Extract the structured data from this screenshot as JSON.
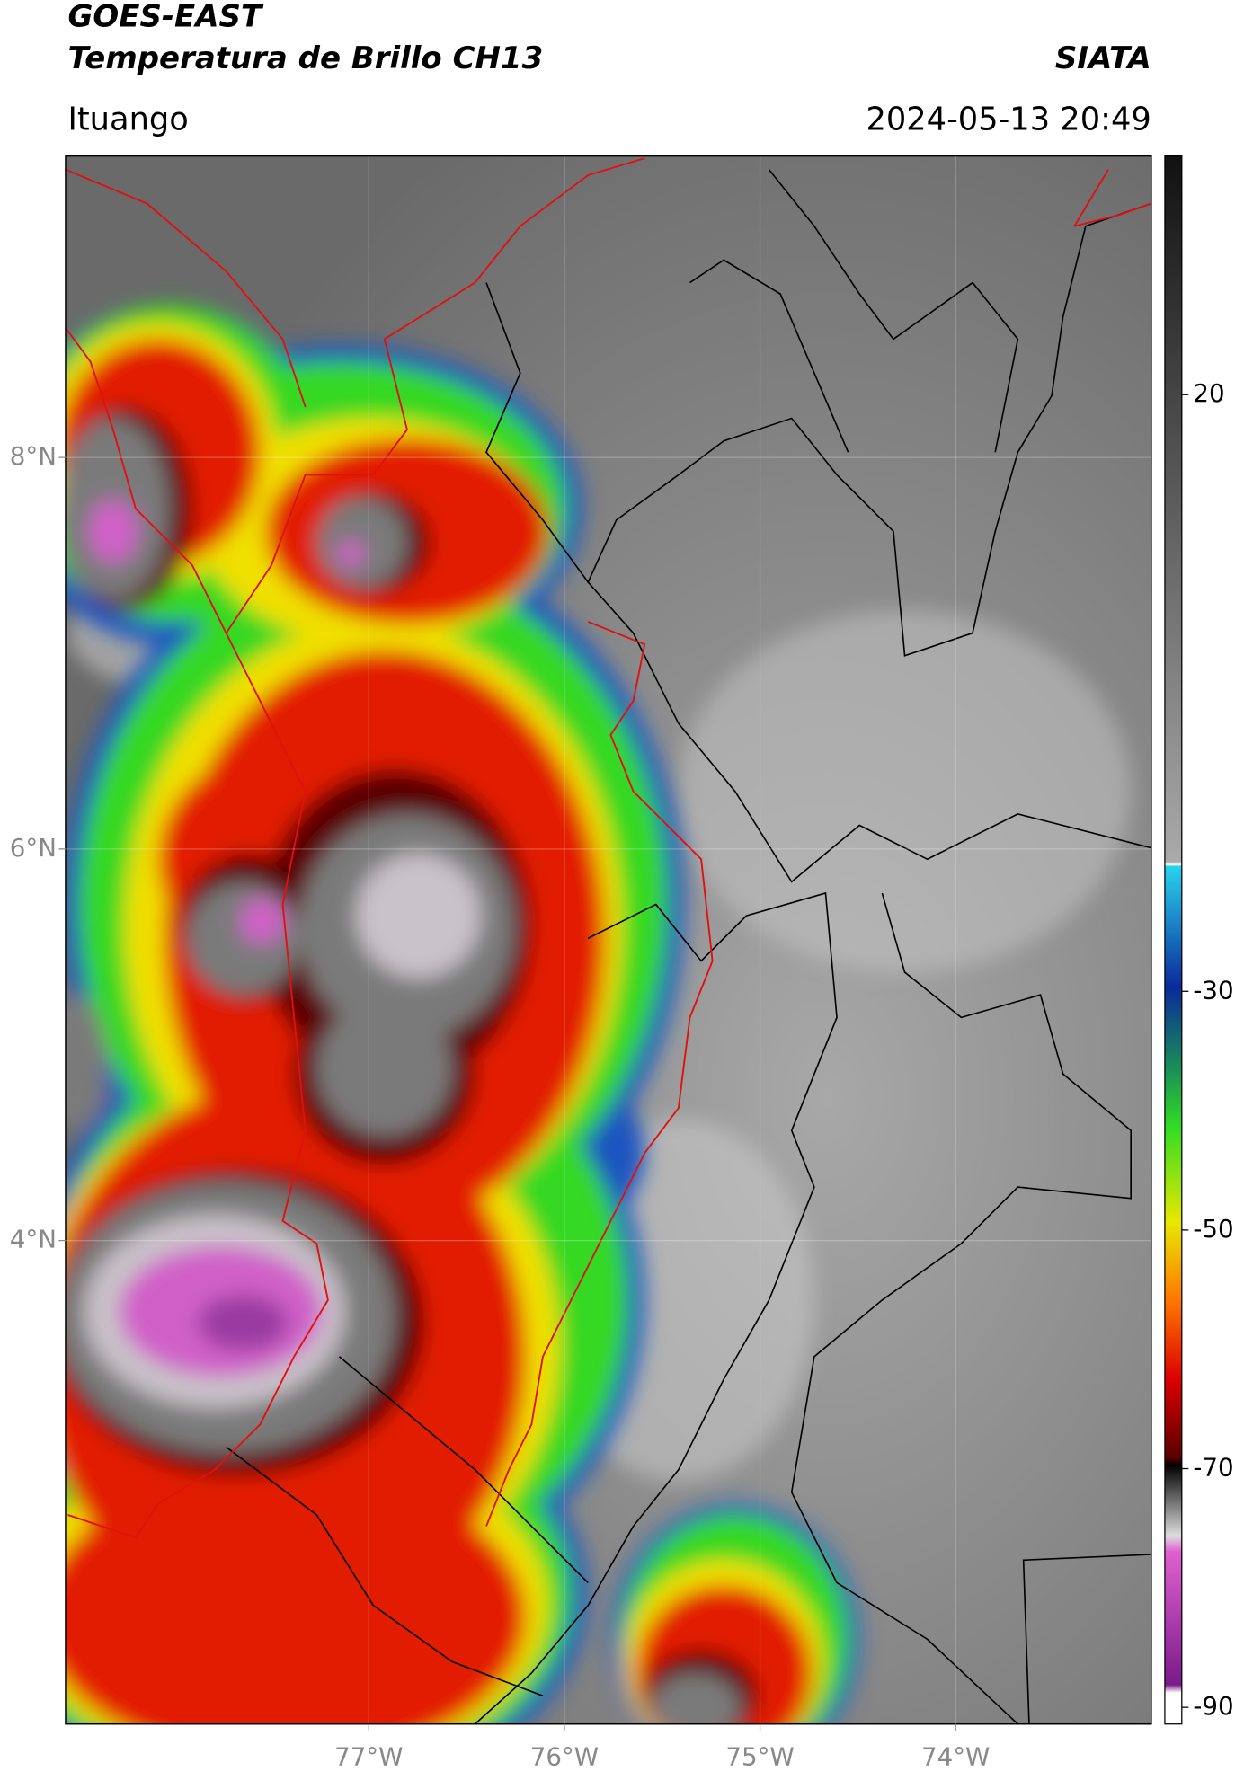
{
  "header": {
    "title": "GOES-EAST",
    "subtitle": "Temperatura de Brillo CH13",
    "brand": "SIATA",
    "location": "Ituango",
    "datetime": "2024-05-13 20:49"
  },
  "map": {
    "xlim": [
      -78.55,
      -73
    ],
    "ylim": [
      1.53,
      9.54
    ],
    "xticks": [
      {
        "value": -77,
        "label": "77°W"
      },
      {
        "value": -76,
        "label": "76°W"
      },
      {
        "value": -75,
        "label": "75°W"
      },
      {
        "value": -74,
        "label": "74°W"
      }
    ],
    "yticks": [
      {
        "value": 4,
        "label": "4°N"
      },
      {
        "value": 6,
        "label": "6°N"
      },
      {
        "value": 8,
        "label": "8°N"
      }
    ],
    "grid": true
  },
  "colorbar": {
    "lim": [
      -91.4,
      40
    ],
    "ticks": [
      -90,
      -70,
      -50,
      -30,
      20
    ]
  }
}
